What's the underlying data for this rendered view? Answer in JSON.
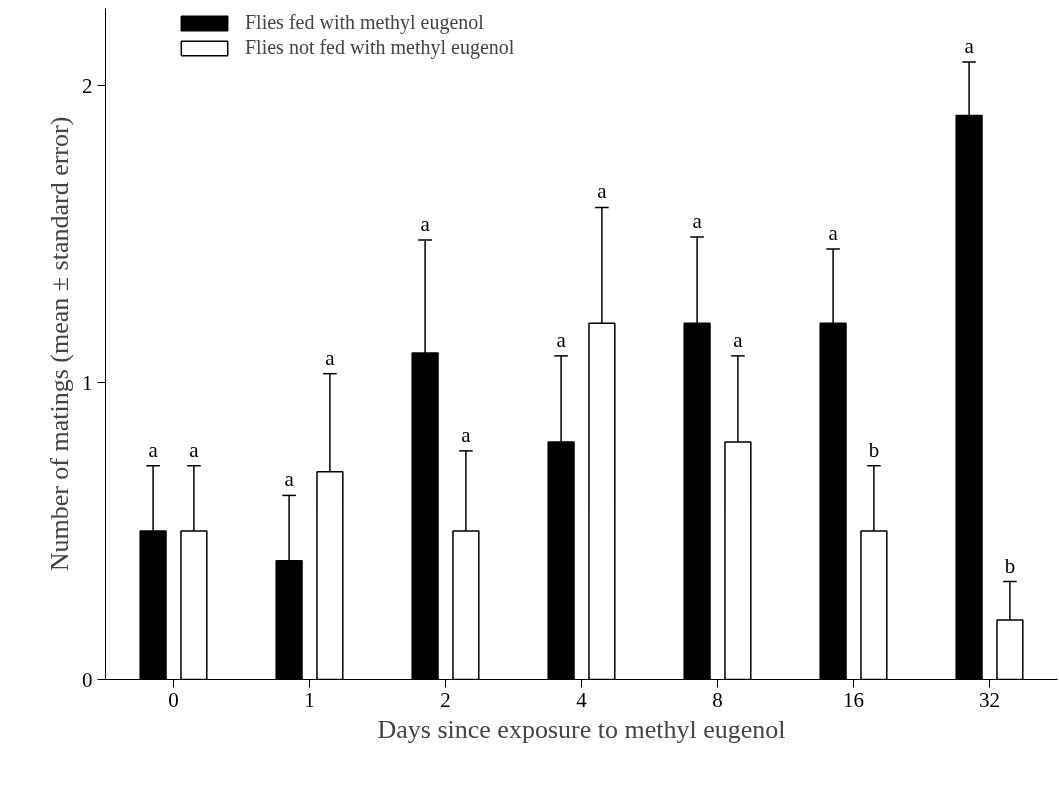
{
  "chart_data": {
    "type": "bar",
    "xlabel": "Days since exposure to methyl eugenol",
    "ylabel": "Number of matings (mean ± standard error)",
    "categories": [
      "0",
      "1",
      "2",
      "4",
      "8",
      "16",
      "32"
    ],
    "series": [
      {
        "name": "Flies fed with methyl eugenol",
        "color": "#000000",
        "values": [
          0.5,
          0.4,
          1.1,
          0.8,
          1.2,
          1.2,
          1.9
        ],
        "errors": [
          [
            0.5,
            0.72
          ],
          [
            0.4,
            0.62
          ],
          [
            1.1,
            1.48
          ],
          [
            0.8,
            1.09
          ],
          [
            1.2,
            1.49
          ],
          [
            1.2,
            1.45
          ],
          [
            1.9,
            2.08
          ]
        ]
      },
      {
        "name": "Flies not fed with methyl eugenol",
        "color": "#ffffff",
        "values": [
          0.5,
          0.7,
          0.5,
          1.2,
          0.8,
          0.5,
          0.2
        ],
        "errors": [
          [
            0.5,
            0.72
          ],
          [
            0.7,
            1.03
          ],
          [
            0.5,
            0.77
          ],
          [
            1.2,
            1.59
          ],
          [
            0.8,
            1.09
          ],
          [
            0.5,
            0.72
          ],
          [
            0.2,
            0.33
          ]
        ]
      }
    ],
    "annotations": [
      "a",
      "a",
      "a",
      "a",
      "a",
      "a",
      "a",
      "a",
      "a",
      "a",
      "a",
      "b",
      "a",
      "b"
    ],
    "ylim": [
      0,
      2.26
    ],
    "yticks": [
      0,
      1,
      2
    ],
    "grid": false,
    "legend": "top left"
  }
}
